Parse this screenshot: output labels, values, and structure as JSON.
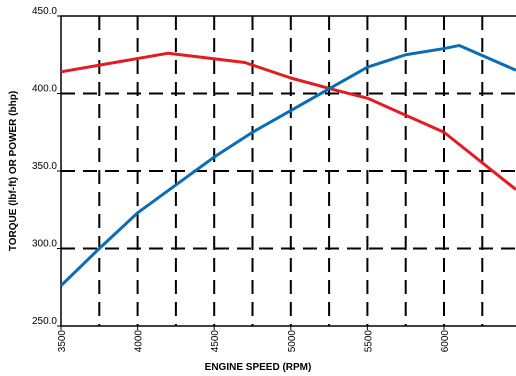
{
  "chart_data": {
    "type": "line",
    "xlabel": "ENGINE SPEED (RPM)",
    "ylabel": "TORQUE (lbf-ft) OR POWER (bhp)",
    "xlim": [
      3500,
      6470
    ],
    "ylim": [
      250,
      450
    ],
    "xticks": [
      3500,
      4000,
      4500,
      5000,
      5500,
      6000
    ],
    "yticks": [
      {
        "value": 250,
        "label": "250.0"
      },
      {
        "value": 300,
        "label": "300.0"
      },
      {
        "value": 350,
        "label": "350.0"
      },
      {
        "value": 400,
        "label": "400.0"
      },
      {
        "value": 450,
        "label": "450.0"
      }
    ],
    "xgrid": [
      3750,
      4000,
      4250,
      4500,
      4750,
      5000,
      5250,
      5500,
      5750,
      6000,
      6250
    ],
    "ygrid": [
      300,
      350,
      400
    ],
    "grid": true,
    "series": [
      {
        "color": "#e31b23",
        "x": [
          3500,
          4200,
          4700,
          5000,
          5300,
          5500,
          6000,
          6470
        ],
        "values": [
          414,
          426,
          420,
          410,
          402,
          397,
          375,
          338
        ]
      },
      {
        "color": "#0a6db5",
        "x": [
          3500,
          3750,
          4000,
          4250,
          4500,
          4750,
          5000,
          5250,
          5500,
          5750,
          6000,
          6100,
          6470
        ],
        "values": [
          276,
          300,
          323,
          341,
          359,
          375,
          389,
          403,
          417,
          425,
          429,
          431,
          415
        ]
      }
    ]
  }
}
